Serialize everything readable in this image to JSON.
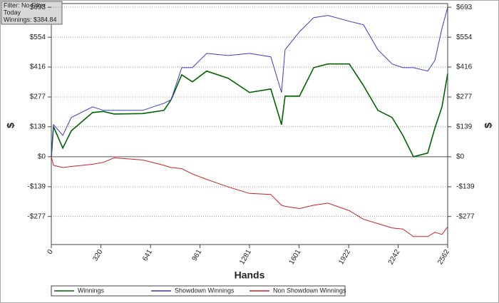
{
  "chart_data": {
    "type": "line",
    "info": [
      "Filter: No Filter",
      "Today",
      "Winnings: $384.84"
    ],
    "x_label": "Hands",
    "y_label": "$",
    "x": [
      0,
      14,
      74,
      129,
      267,
      336,
      406,
      590,
      728,
      774,
      843,
      912,
      1004,
      1143,
      1281,
      1419,
      1488,
      1511,
      1604,
      1696,
      1788,
      1926,
      2018,
      2111,
      2203,
      2272,
      2341,
      2433,
      2479,
      2525,
      2562
    ],
    "series": [
      {
        "name": "Winnings",
        "color": "#006400",
        "values": [
          0,
          140,
          40,
          120,
          205,
          210,
          198,
          200,
          215,
          264,
          380,
          347,
          397,
          364,
          298,
          314,
          149,
          281,
          281,
          413,
          430,
          430,
          330,
          215,
          182,
          99,
          0,
          17,
          132,
          231,
          385
        ]
      },
      {
        "name": "Showdown Winnings",
        "color": "#3c3cc8",
        "values": [
          0,
          149,
          99,
          182,
          231,
          215,
          215,
          215,
          248,
          264,
          413,
          413,
          479,
          469,
          479,
          463,
          298,
          496,
          579,
          645,
          655,
          628,
          612,
          496,
          430,
          413,
          413,
          397,
          446,
          595,
          693
        ]
      },
      {
        "name": "Non Showdown Winnings",
        "color": "#cc2222",
        "values": [
          0,
          -40,
          -50,
          -45,
          -35,
          -26,
          -5,
          -15,
          -40,
          -50,
          -55,
          -80,
          -105,
          -140,
          -170,
          -175,
          -225,
          -230,
          -240,
          -225,
          -215,
          -250,
          -290,
          -310,
          -330,
          -335,
          -370,
          -370,
          -350,
          -360,
          -325
        ]
      }
    ],
    "xlim": [
      0,
      2562
    ],
    "xticks": [
      0,
      320,
      641,
      961,
      1281,
      1601,
      1922,
      2242,
      2562
    ],
    "ylim": [
      -407,
      710
    ],
    "yticks": [
      {
        "value": 693,
        "label": "$693"
      },
      {
        "value": 554,
        "label": "$554"
      },
      {
        "value": 416,
        "label": "$416"
      },
      {
        "value": 277,
        "label": "$277"
      },
      {
        "value": 139,
        "label": "$139"
      },
      {
        "value": 0,
        "label": "$0"
      },
      {
        "value": -139,
        "label": "-$139"
      },
      {
        "value": -277,
        "label": "-$277"
      }
    ],
    "grid": true,
    "legend": "bottom"
  }
}
